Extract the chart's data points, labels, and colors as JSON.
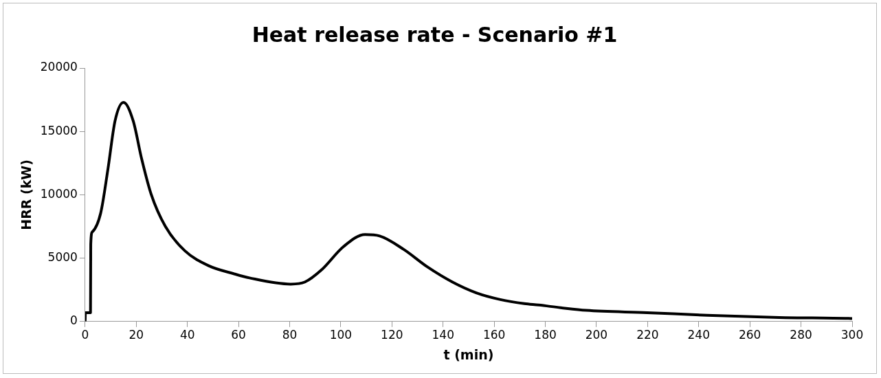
{
  "chart_data": {
    "type": "line",
    "title": "Heat release rate - Scenario #1",
    "xlabel": "t (min)",
    "ylabel": "HRR (kW)",
    "xlim": [
      0,
      300
    ],
    "xticks": [
      0,
      20,
      40,
      60,
      80,
      100,
      120,
      140,
      160,
      180,
      200,
      220,
      240,
      260,
      280,
      300
    ],
    "ylim": [
      0,
      20000
    ],
    "yticks": [
      0,
      5000,
      10000,
      15000,
      20000
    ],
    "grid": false,
    "legend": false,
    "marker": "none",
    "line_style": "solid",
    "series": [
      {
        "color": "#000000",
        "x": [
          0,
          0.1,
          2.1,
          2.2,
          2.8,
          6.1,
          8.9,
          11.7,
          15,
          18.8,
          22.1,
          25.8,
          31.4,
          39,
          48.3,
          58.3,
          64.3,
          80.4,
          86,
          92.5,
          101,
          109.5,
          115.2,
          124.6,
          134,
          143.6,
          153,
          162.4,
          171.8,
          177.4,
          186,
          196,
          219.8,
          243.3,
          271.5,
          298.6,
          300
        ],
        "values": [
          0,
          700,
          700,
          6100,
          7070,
          8570,
          12000,
          15830,
          17290,
          15830,
          12840,
          10060,
          7500,
          5580,
          4400,
          3760,
          3440,
          2950,
          3120,
          4080,
          5900,
          6860,
          6750,
          5690,
          4290,
          3120,
          2260,
          1730,
          1410,
          1300,
          1090,
          880,
          700,
          490,
          320,
          240,
          230
        ]
      }
    ]
  }
}
